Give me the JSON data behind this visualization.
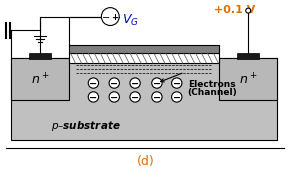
{
  "bg_color": "#ffffff",
  "substrate_color": "#c0c0c0",
  "gate_hatch_color": "#e0e0e0",
  "gate_metal_color": "#808080",
  "n_plus_color": "#b8b8b8",
  "contact_color": "#1a1a1a",
  "title_label": "(d)",
  "vds_label": "+0.1 V",
  "line_color": "#000000",
  "orange_color": "#e07000",
  "vg_color": "#0000cc"
}
